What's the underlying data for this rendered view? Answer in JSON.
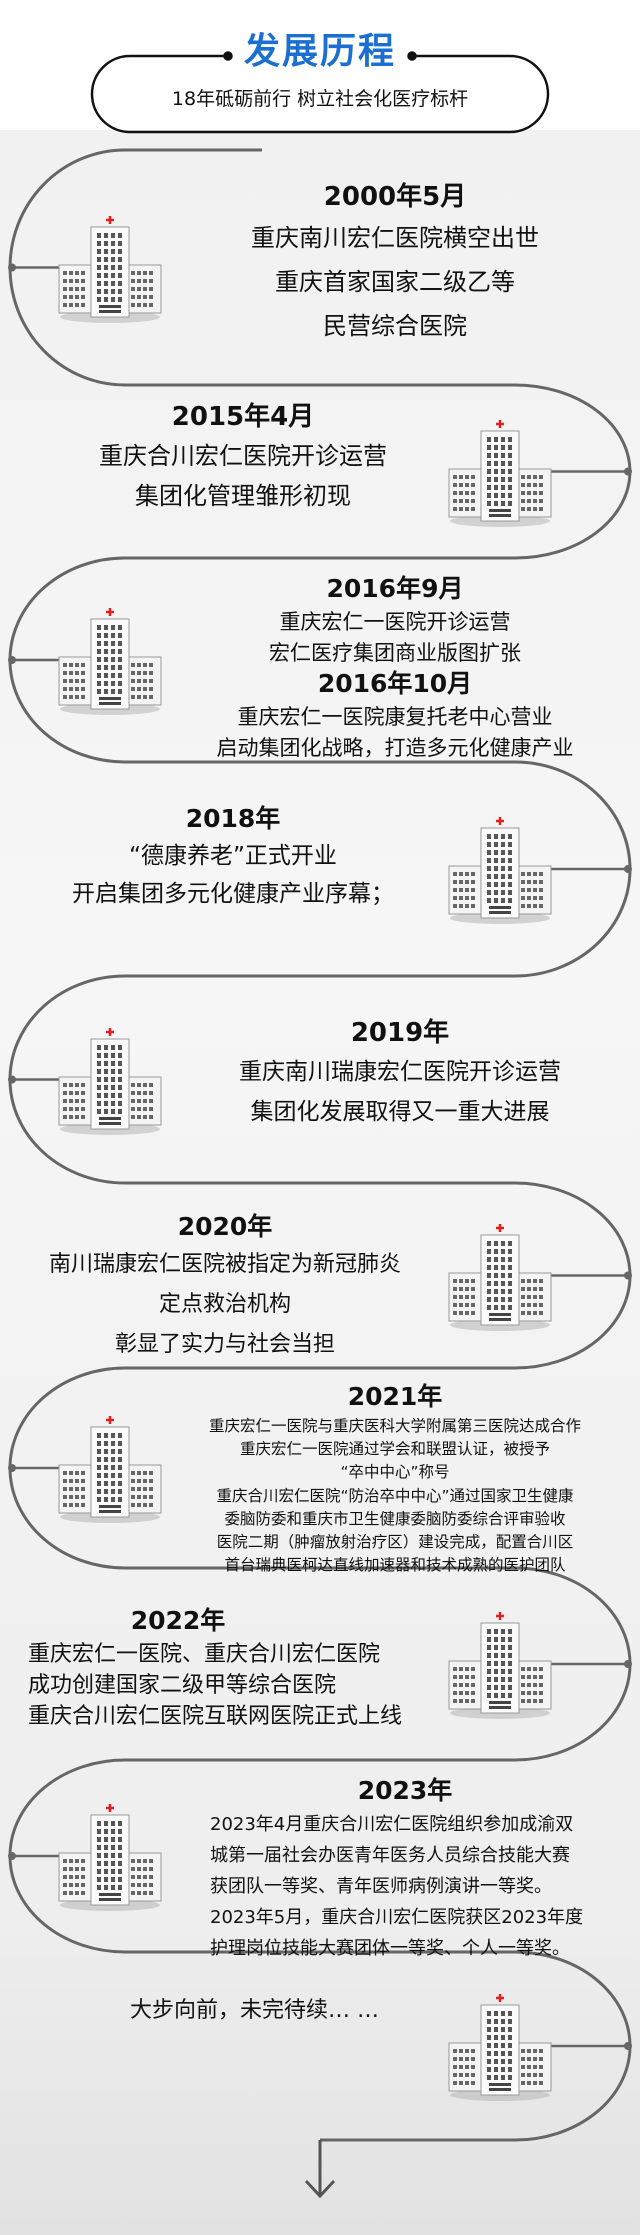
{
  "header": {
    "title": "发展历程",
    "subtitle": "18年砥砺前行 树立社会化医疗标杆",
    "title_color": "#1b6fd1"
  },
  "timeline": [
    {
      "side": "building-left",
      "blocks": [
        {
          "year": "2000年5月",
          "lines": [
            "重庆南川宏仁医院横空出世",
            "重庆首家国家二级乙等",
            "民营综合医院"
          ]
        }
      ]
    },
    {
      "side": "building-right",
      "blocks": [
        {
          "year": "2015年4月",
          "lines": [
            "重庆合川宏仁医院开诊运营",
            "集团化管理雏形初现"
          ]
        }
      ]
    },
    {
      "side": "building-left",
      "blocks": [
        {
          "year": "2016年9月",
          "lines": [
            "重庆宏仁一医院开诊运营",
            "宏仁医疗集团商业版图扩张"
          ]
        },
        {
          "year": "2016年10月",
          "lines": [
            "重庆宏仁一医院康复托老中心营业",
            "启动集团化战略，打造多元化健康产业"
          ]
        }
      ]
    },
    {
      "side": "building-right",
      "blocks": [
        {
          "year": "2018年",
          "lines": [
            "“德康养老”正式开业",
            "开启集团多元化健康产业序幕；"
          ]
        }
      ]
    },
    {
      "side": "building-left",
      "blocks": [
        {
          "year": "2019年",
          "lines": [
            "重庆南川瑞康宏仁医院开诊运营",
            "集团化发展取得又一重大进展"
          ]
        }
      ]
    },
    {
      "side": "building-right",
      "blocks": [
        {
          "year": "2020年",
          "lines": [
            "南川瑞康宏仁医院被指定为新冠肺炎",
            "定点救治机构",
            "彰显了实力与社会当担"
          ]
        }
      ]
    },
    {
      "side": "building-left",
      "blocks": [
        {
          "year": "2021年",
          "lines": [
            "重庆宏仁一医院与重庆医科大学附属第三医院达成合作",
            "重庆宏仁一医院通过学会和联盟认证，被授予",
            "“卒中中心”称号",
            "重庆合川宏仁医院“防治卒中中心”通过国家卫生健康",
            "委脑防委和重庆市卫生健康委脑防委综合评审验收",
            "医院二期（肿瘤放射治疗区）建设完成，配置合川区",
            "首台瑞典医柯达直线加速器和技术成熟的医护团队"
          ]
        }
      ]
    },
    {
      "side": "building-right",
      "blocks": [
        {
          "year": "2022年",
          "lines": [
            "重庆宏仁一医院、重庆合川宏仁医院",
            "成功创建国家二级甲等综合医院",
            "重庆合川宏仁医院互联网医院正式上线"
          ]
        }
      ]
    },
    {
      "side": "building-left",
      "blocks": [
        {
          "year": "2023年",
          "lines": [
            "2023年4月重庆合川宏仁医院组织参加成渝双",
            "城第一届社会办医青年医务人员综合技能大赛",
            "获团队一等奖、青年医师病例演讲一等奖。",
            "2023年5月，重庆合川宏仁医院获区2023年度",
            "护理岗位技能大赛团体一等奖、个人一等奖。"
          ]
        }
      ]
    },
    {
      "side": "building-right",
      "blocks": [
        {
          "year": "",
          "lines": [
            "大步向前，未完待续… …"
          ]
        }
      ]
    }
  ],
  "icons": {
    "building": "hospital-building-icon",
    "cross_color": "#e02020",
    "arrow": "arrow-down-icon"
  }
}
